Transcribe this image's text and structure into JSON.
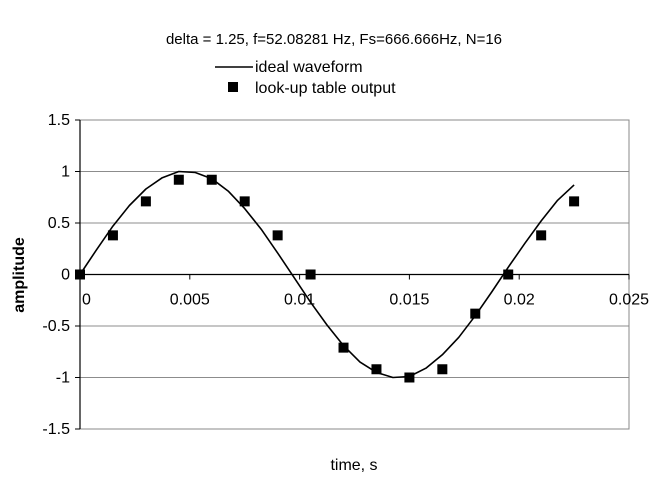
{
  "chart_data": {
    "type": "line",
    "title": "delta = 1.25, f=52.08281  Hz, Fs=666.666Hz, N=16",
    "xlabel": "time, s",
    "ylabel": "amplitude",
    "xlim": [
      0,
      0.025
    ],
    "ylim": [
      -1.5,
      1.5
    ],
    "x_ticks": [
      "0",
      "0.005",
      "0.01",
      "0.015",
      "0.02",
      "0.025"
    ],
    "y_ticks": [
      "1.5",
      "1",
      "0.5",
      "0",
      "-0.5",
      "-1",
      "-1.5"
    ],
    "x_tick_values": [
      0,
      0.005,
      0.01,
      0.015,
      0.02,
      0.025
    ],
    "y_tick_values": [
      1.5,
      1,
      0.5,
      0,
      -0.5,
      -1,
      -1.5
    ],
    "grid": "horizontal",
    "legend_position": "top-center",
    "series": [
      {
        "name": "ideal waveform",
        "style": "line",
        "color": "#000000",
        "x": [
          0,
          0.00075,
          0.0015,
          0.00225,
          0.003,
          0.00375,
          0.0045,
          0.00525,
          0.006,
          0.00675,
          0.0075,
          0.00825,
          0.009,
          0.00975,
          0.0105,
          0.01125,
          0.012,
          0.01275,
          0.0135,
          0.01425,
          0.015,
          0.01575,
          0.0165,
          0.01725,
          0.018,
          0.01875,
          0.0195,
          0.02025,
          0.021,
          0.02175,
          0.0225
        ],
        "y": [
          0,
          0.24,
          0.47,
          0.67,
          0.83,
          0.94,
          1.0,
          0.99,
          0.93,
          0.81,
          0.64,
          0.44,
          0.21,
          -0.03,
          -0.27,
          -0.49,
          -0.69,
          -0.85,
          -0.95,
          -1.0,
          -0.99,
          -0.91,
          -0.78,
          -0.61,
          -0.4,
          -0.17,
          0.07,
          0.3,
          0.52,
          0.72,
          0.87
        ]
      },
      {
        "name": "look-up table output",
        "style": "markers",
        "marker": "square",
        "color": "#000000",
        "x": [
          0,
          0.0015,
          0.003,
          0.0045,
          0.006,
          0.0075,
          0.009,
          0.0105,
          0.012,
          0.0135,
          0.015,
          0.0165,
          0.018,
          0.0195,
          0.021,
          0.0225
        ],
        "y": [
          0,
          0.38,
          0.71,
          0.92,
          0.92,
          0.71,
          0.38,
          0,
          -0.71,
          -0.92,
          -1.0,
          -0.92,
          -0.38,
          0,
          0.38,
          0.71
        ]
      }
    ]
  }
}
